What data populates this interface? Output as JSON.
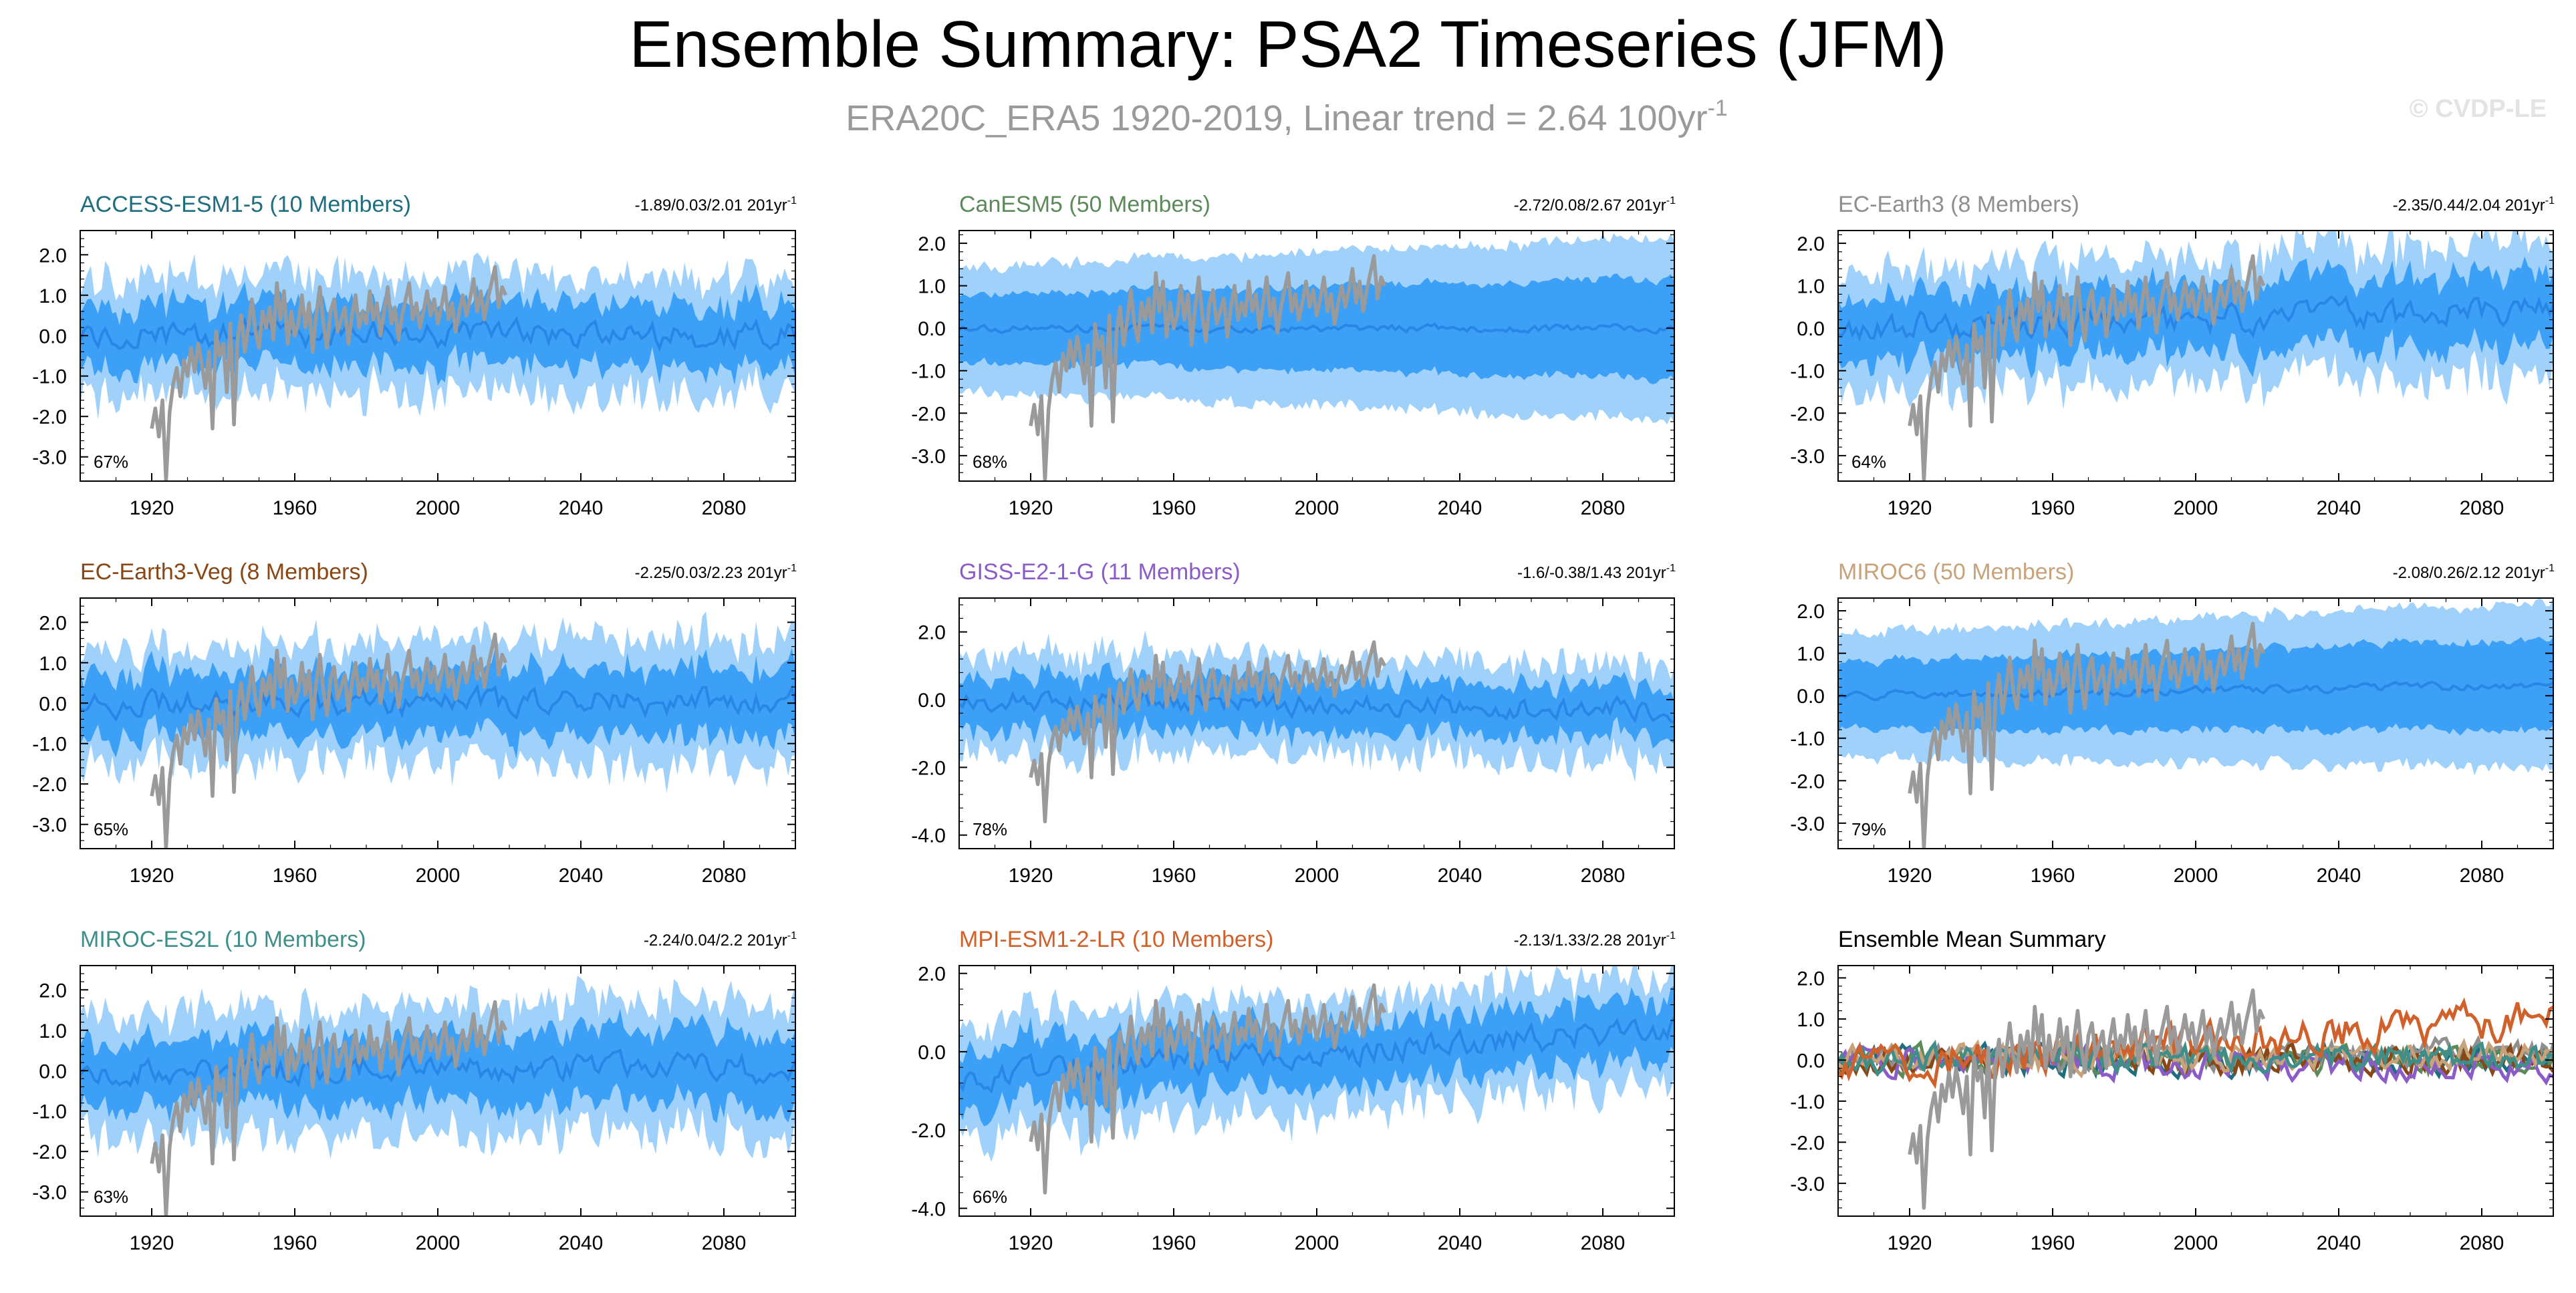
{
  "figure": {
    "title": "Ensemble Summary: PSA2 Timeseries (JFM)",
    "subtitle_main": "ERA20C_ERA5 1920-2019, Linear trend = 2.64 100yr",
    "subtitle_sup": "-1",
    "watermark": "© CVDP-LE"
  },
  "colors": {
    "shade_light": "#9fd1fb",
    "shade_dark": "#3ca0f6",
    "ens_mean": "#2a86e6",
    "obs": "#9a9a9a"
  },
  "chart_data": [
    {
      "type": "line",
      "id": "access",
      "title": "ACCESS-ESM1-5 (10 Members)",
      "title_color": "#1f6e80",
      "stats": "-1.89/0.03/2.01 201yr",
      "stats_sup": "-1",
      "pct": "67%",
      "xlim": [
        1900,
        2100
      ],
      "ylim": [
        -3.6,
        2.6
      ],
      "yticks": [
        2,
        1,
        0,
        -1,
        -2,
        -3
      ],
      "yticklabels": [
        "2.0",
        "1.0",
        "0.0",
        "-1.0",
        "-2.0",
        "-3.0"
      ],
      "xticks": [
        1920,
        1960,
        2000,
        2040,
        2080
      ],
      "xticklabels": [
        "1920",
        "1960",
        "2000",
        "2040",
        "2080"
      ],
      "seed": 11,
      "spread_start": 1.25,
      "spread_end": 1.25,
      "mean_trend": 0.0
    },
    {
      "type": "line",
      "id": "canesm5",
      "title": "CanESM5 (50 Members)",
      "title_color": "#5c8a5a",
      "stats": "-2.72/0.08/2.67 201yr",
      "stats_sup": "-1",
      "pct": "68%",
      "xlim": [
        1900,
        2100
      ],
      "ylim": [
        -3.6,
        2.3
      ],
      "yticks": [
        2,
        1,
        0,
        -1,
        -2,
        -3
      ],
      "yticklabels": [
        "2.0",
        "1.0",
        "0.0",
        "-1.0",
        "-2.0",
        "-3.0"
      ],
      "xticks": [
        1920,
        1960,
        2000,
        2040,
        2080
      ],
      "xticklabels": [
        "1920",
        "1960",
        "2000",
        "2040",
        "2080"
      ],
      "seed": 23,
      "spread_start": 1.4,
      "spread_end": 2.1,
      "mean_trend": 0.0,
      "smooth": true
    },
    {
      "type": "line",
      "id": "ecearth3",
      "title": "EC-Earth3 (8 Members)",
      "title_color": "#8f8f8f",
      "stats": "-2.35/0.44/2.04 201yr",
      "stats_sup": "-1",
      "pct": "64%",
      "xlim": [
        1900,
        2100
      ],
      "ylim": [
        -3.6,
        2.3
      ],
      "yticks": [
        2,
        1,
        0,
        -1,
        -2,
        -3
      ],
      "yticklabels": [
        "2.0",
        "1.0",
        "0.0",
        "-1.0",
        "-2.0",
        "-3.0"
      ],
      "xticks": [
        1920,
        1960,
        2000,
        2040,
        2080
      ],
      "xticklabels": [
        "1920",
        "1960",
        "2000",
        "2040",
        "2080"
      ],
      "seed": 37,
      "spread_start": 1.2,
      "spread_end": 1.4,
      "mean_trend": 0.4
    },
    {
      "type": "line",
      "id": "ecearth3veg",
      "title": "EC-Earth3-Veg (8 Members)",
      "title_color": "#8a4716",
      "stats": "-2.25/0.03/2.23 201yr",
      "stats_sup": "-1",
      "pct": "65%",
      "xlim": [
        1900,
        2100
      ],
      "ylim": [
        -3.6,
        2.6
      ],
      "yticks": [
        2,
        1,
        0,
        -1,
        -2,
        -3
      ],
      "yticklabels": [
        "2.0",
        "1.0",
        "0.0",
        "-1.0",
        "-2.0",
        "-3.0"
      ],
      "xticks": [
        1920,
        1960,
        2000,
        2040,
        2080
      ],
      "xticklabels": [
        "1920",
        "1960",
        "2000",
        "2040",
        "2080"
      ],
      "seed": 41,
      "spread_start": 1.2,
      "spread_end": 1.4,
      "mean_trend": 0.05
    },
    {
      "type": "line",
      "id": "giss",
      "title": "GISS-E2-1-G (11 Members)",
      "title_color": "#8b5cc7",
      "stats": "-1.6/-0.38/1.43 201yr",
      "stats_sup": "-1",
      "pct": "78%",
      "xlim": [
        1900,
        2100
      ],
      "ylim": [
        -4.4,
        3.0
      ],
      "yticks": [
        2,
        0,
        -2,
        -4
      ],
      "yticklabels": [
        "2.0",
        "0.0",
        "-2.0",
        "-4.0"
      ],
      "xticks": [
        1920,
        1960,
        2000,
        2040,
        2080
      ],
      "xticklabels": [
        "1920",
        "1960",
        "2000",
        "2040",
        "2080"
      ],
      "seed": 53,
      "spread_start": 1.3,
      "spread_end": 1.2,
      "mean_trend": -0.35
    },
    {
      "type": "line",
      "id": "miroc6",
      "title": "MIROC6 (50 Members)",
      "title_color": "#c8a27a",
      "stats": "-2.08/0.26/2.12 201yr",
      "stats_sup": "-1",
      "pct": "79%",
      "xlim": [
        1900,
        2100
      ],
      "ylim": [
        -3.6,
        2.3
      ],
      "yticks": [
        2,
        1,
        0,
        -1,
        -2,
        -3
      ],
      "yticklabels": [
        "2.0",
        "1.0",
        "0.0",
        "-1.0",
        "-2.0",
        "-3.0"
      ],
      "xticks": [
        1920,
        1960,
        2000,
        2040,
        2080
      ],
      "xticklabels": [
        "1920",
        "1960",
        "2000",
        "2040",
        "2080"
      ],
      "seed": 67,
      "spread_start": 1.4,
      "spread_end": 1.9,
      "mean_trend": 0.25,
      "smooth": true
    },
    {
      "type": "line",
      "id": "mirocES2L",
      "title": "MIROC-ES2L (10 Members)",
      "title_color": "#3e8e8a",
      "stats": "-2.24/0.04/2.2 201yr",
      "stats_sup": "-1",
      "pct": "63%",
      "xlim": [
        1900,
        2100
      ],
      "ylim": [
        -3.6,
        2.6
      ],
      "yticks": [
        2,
        1,
        0,
        -1,
        -2,
        -3
      ],
      "yticklabels": [
        "2.0",
        "1.0",
        "0.0",
        "-1.0",
        "-2.0",
        "-3.0"
      ],
      "xticks": [
        1920,
        1960,
        2000,
        2040,
        2080
      ],
      "xticklabels": [
        "1920",
        "1960",
        "2000",
        "2040",
        "2080"
      ],
      "seed": 79,
      "spread_start": 1.3,
      "spread_end": 1.5,
      "mean_trend": 0.05
    },
    {
      "type": "line",
      "id": "mpi",
      "title": "MPI-ESM1-2-LR (10 Members)",
      "title_color": "#d0612a",
      "stats": "-2.13/1.33/2.28 201yr",
      "stats_sup": "-1",
      "pct": "66%",
      "xlim": [
        1900,
        2100
      ],
      "ylim": [
        -4.2,
        2.2
      ],
      "yticks": [
        2,
        0,
        -2,
        -4
      ],
      "yticklabels": [
        "2.0",
        "0.0",
        "-2.0",
        "-4.0"
      ],
      "xticks": [
        1920,
        1960,
        2000,
        2040,
        2080
      ],
      "xticklabels": [
        "1920",
        "1960",
        "2000",
        "2040",
        "2080"
      ],
      "seed": 97,
      "spread_start": 1.3,
      "spread_end": 1.2,
      "mean_trend": 1.3,
      "mean_start": -0.7
    },
    {
      "type": "summary",
      "id": "summary",
      "title": "Ensemble Mean Summary",
      "title_color": "#000000",
      "xlim": [
        1900,
        2100
      ],
      "ylim": [
        -3.8,
        2.3
      ],
      "yticks": [
        2,
        1,
        0,
        -1,
        -2,
        -3
      ],
      "yticklabels": [
        "2.0",
        "1.0",
        "0.0",
        "-1.0",
        "-2.0",
        "-3.0"
      ],
      "xticks": [
        1920,
        1960,
        2000,
        2040,
        2080
      ],
      "xticklabels": [
        "1920",
        "1960",
        "2000",
        "2040",
        "2080"
      ],
      "series_colors": [
        "#1f6e80",
        "#5c8a5a",
        "#8f8f8f",
        "#8a4716",
        "#8b5cc7",
        "#c8a27a",
        "#3e8e8a",
        "#d0612a"
      ]
    }
  ],
  "observations": {
    "name": "ERA20C_ERA5",
    "x": [
      1920,
      1921,
      1922,
      1923,
      1924,
      1925,
      1926,
      1927,
      1928,
      1929,
      1930,
      1931,
      1932,
      1933,
      1934,
      1935,
      1936,
      1937,
      1938,
      1939,
      1940,
      1941,
      1942,
      1943,
      1944,
      1945,
      1946,
      1947,
      1948,
      1949,
      1950,
      1951,
      1952,
      1953,
      1954,
      1955,
      1956,
      1957,
      1958,
      1959,
      1960,
      1961,
      1962,
      1963,
      1964,
      1965,
      1966,
      1967,
      1968,
      1969,
      1970,
      1971,
      1972,
      1973,
      1974,
      1975,
      1976,
      1977,
      1978,
      1979,
      1980,
      1981,
      1982,
      1983,
      1984,
      1985,
      1986,
      1987,
      1988,
      1989,
      1990,
      1991,
      1992,
      1993,
      1994,
      1995,
      1996,
      1997,
      1998,
      1999,
      2000,
      2001,
      2002,
      2003,
      2004,
      2005,
      2006,
      2007,
      2008,
      2009,
      2010,
      2011,
      2012,
      2013,
      2014,
      2015,
      2016,
      2017,
      2018,
      2019
    ],
    "values": [
      -2.3,
      -1.8,
      -2.5,
      -1.6,
      -3.6,
      -1.9,
      -1.2,
      -0.8,
      -1.5,
      -0.6,
      -1.0,
      -0.3,
      -0.9,
      -0.2,
      -0.7,
      -1.3,
      -0.4,
      -2.3,
      0.1,
      -0.5,
      -0.2,
      -1.4,
      0.3,
      -2.2,
      -0.1,
      0.5,
      -0.4,
      0.2,
      0.9,
      0.1,
      -0.3,
      0.6,
      0.2,
      0.7,
      -0.1,
      1.3,
      0.4,
      1.1,
      -0.2,
      0.6,
      0.0,
      0.3,
      1.0,
      0.2,
      0.8,
      -0.4,
      0.5,
      1.2,
      0.3,
      -0.3,
      0.6,
      0.9,
      0.1,
      0.4,
      0.7,
      -0.2,
      0.5,
      1.0,
      0.2,
      0.6,
      0.3,
      1.1,
      0.4,
      0.8,
      0.0,
      0.6,
      1.2,
      0.3,
      0.7,
      -0.1,
      0.5,
      0.9,
      1.3,
      0.4,
      0.8,
      0.2,
      0.6,
      1.1,
      0.5,
      0.9,
      0.3,
      0.7,
      1.2,
      0.4,
      0.8,
      0.1,
      0.6,
      1.0,
      0.5,
      0.9,
      1.4,
      0.6,
      1.1,
      0.4,
      0.9,
      1.3,
      1.7,
      0.7,
      1.2,
      1.0
    ]
  }
}
